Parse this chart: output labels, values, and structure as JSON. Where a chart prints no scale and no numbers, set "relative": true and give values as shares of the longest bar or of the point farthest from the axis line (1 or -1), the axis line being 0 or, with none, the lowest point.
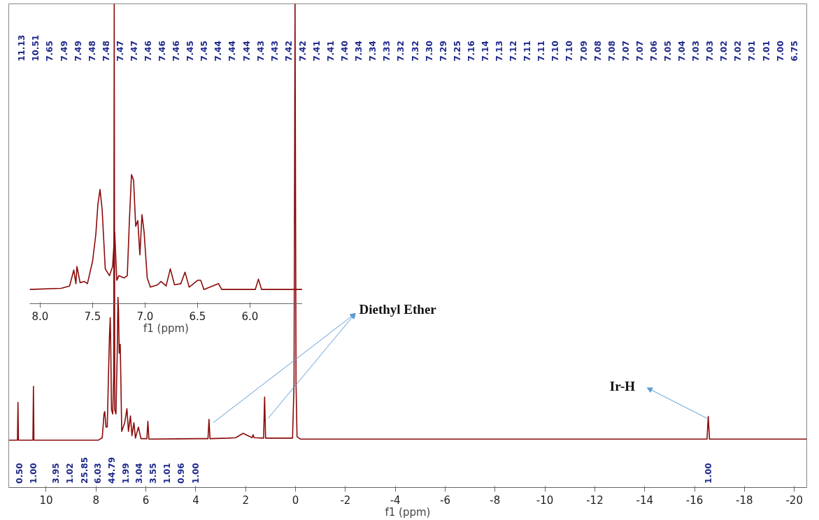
{
  "chart_data": [
    {
      "type": "line",
      "relative": true,
      "xlabel": "f1 (ppm)",
      "xlim": [
        11.5,
        -20.5
      ],
      "xticks": [
        10,
        8,
        6,
        4,
        2,
        0,
        -2,
        -4,
        -6,
        -8,
        -10,
        -12,
        -14,
        -16,
        -18,
        -20
      ],
      "tick_labels": "x",
      "grid": false,
      "color": "#8b0a0a",
      "x": [
        11.5,
        11.15,
        11.13,
        11.11,
        10.53,
        10.51,
        10.49,
        7.9,
        7.75,
        7.68,
        7.65,
        7.6,
        7.55,
        7.5,
        7.46,
        7.43,
        7.41,
        7.38,
        7.33,
        7.29,
        7.27,
        7.25,
        7.2,
        7.15,
        7.12,
        7.1,
        7.07,
        7.03,
        7.01,
        6.97,
        6.85,
        6.76,
        6.7,
        6.62,
        6.56,
        6.48,
        6.42,
        6.3,
        6.2,
        5.96,
        5.92,
        5.88,
        3.9,
        3.51,
        3.47,
        3.43,
        2.7,
        2.4,
        2.1,
        1.9,
        1.74,
        1.7,
        1.66,
        1.28,
        1.24,
        1.2,
        0.12,
        0.06,
        0.02,
        -0.02,
        -0.06,
        -0.2,
        -16.5,
        -16.55,
        -16.6,
        -20.5
      ],
      "values": [
        0.098,
        0.098,
        0.176,
        0.098,
        0.098,
        0.209,
        0.098,
        0.098,
        0.103,
        0.152,
        0.157,
        0.125,
        0.125,
        0.233,
        0.314,
        0.351,
        0.296,
        0.161,
        0.152,
        0.233,
        1,
        0.161,
        0.152,
        0.278,
        0.393,
        0.369,
        0.278,
        0.296,
        0.242,
        0.116,
        0.134,
        0.163,
        0.116,
        0.148,
        0.107,
        0.134,
        0.102,
        0.125,
        0.101,
        0.101,
        0.137,
        0.1,
        0.101,
        0.101,
        0.141,
        0.101,
        0.102,
        0.103,
        0.112,
        0.107,
        0.103,
        0.109,
        0.103,
        0.102,
        0.187,
        0.102,
        0.102,
        0.215,
        1,
        0.215,
        0.105,
        0.1,
        0.1,
        0.147,
        0.1,
        0.1
      ],
      "annotations": [
        "11.13",
        "10.51",
        "7.65",
        "7.49",
        "7.49",
        "7.48",
        "7.48",
        "7.47",
        "7.47",
        "7.46",
        "7.46",
        "7.46",
        "7.45",
        "7.45",
        "7.44",
        "7.44",
        "7.44",
        "7.43",
        "7.43",
        "7.42",
        "7.42",
        "7.41",
        "7.41",
        "7.40",
        "7.34",
        "7.34",
        "7.33",
        "7.32",
        "7.32",
        "7.30",
        "7.29",
        "7.25",
        "7.16",
        "7.14",
        "7.13",
        "7.12",
        "7.11",
        "7.11",
        "7.10",
        "7.10",
        "7.09",
        "7.08",
        "7.08",
        "7.07",
        "7.07",
        "7.06",
        "7.05",
        "7.04",
        "7.03",
        "7.03",
        "7.02",
        "7.02",
        "7.01",
        "7.01",
        "7.00",
        "6.75",
        "0.50",
        "1.00",
        "3.95",
        "1.02",
        "25.85",
        "6.03",
        "44.79",
        "1.99",
        "3.04",
        "3.55",
        "1.01",
        "0.96",
        "1.00",
        "1.00",
        "Diethyl Ether",
        "Ir-H"
      ]
    },
    {
      "type": "line",
      "relative": true,
      "xlabel": "f1 (ppm)",
      "xlim": [
        8.1,
        5.5
      ],
      "xticks": [
        {
          "value": 8,
          "label": "8.0"
        },
        {
          "value": 7.5,
          "label": "7.5"
        },
        {
          "value": 7,
          "label": "7.0"
        },
        {
          "value": 6.5,
          "label": "6.5"
        },
        {
          "value": 6,
          "label": "6.0"
        }
      ],
      "tick_labels": "x",
      "grid": false,
      "color": "#8b0a0a",
      "x": [
        8.1,
        7.8,
        7.72,
        7.68,
        7.66,
        7.65,
        7.62,
        7.58,
        7.55,
        7.5,
        7.47,
        7.45,
        7.43,
        7.41,
        7.38,
        7.34,
        7.31,
        7.29,
        7.27,
        7.25,
        7.2,
        7.17,
        7.15,
        7.13,
        7.11,
        7.09,
        7.07,
        7.05,
        7.03,
        7.01,
        6.98,
        6.95,
        6.88,
        6.85,
        6.8,
        6.76,
        6.72,
        6.66,
        6.62,
        6.58,
        6.5,
        6.47,
        6.44,
        6.3,
        6.27,
        5.95,
        5.92,
        5.89,
        5.5
      ],
      "values": [
        0.11,
        0.119,
        0.137,
        0.261,
        0.155,
        0.288,
        0.163,
        0.172,
        0.155,
        0.333,
        0.537,
        0.769,
        0.884,
        0.733,
        0.27,
        0.217,
        0.288,
        0.555,
        0.181,
        0.217,
        0.199,
        0.217,
        0.644,
        1,
        0.956,
        0.6,
        0.644,
        0.377,
        0.689,
        0.555,
        0.199,
        0.128,
        0.146,
        0.172,
        0.137,
        0.27,
        0.146,
        0.155,
        0.244,
        0.128,
        0.181,
        0.181,
        0.11,
        0.155,
        0.11,
        0.11,
        0.19,
        0.11,
        0.11
      ]
    }
  ]
}
